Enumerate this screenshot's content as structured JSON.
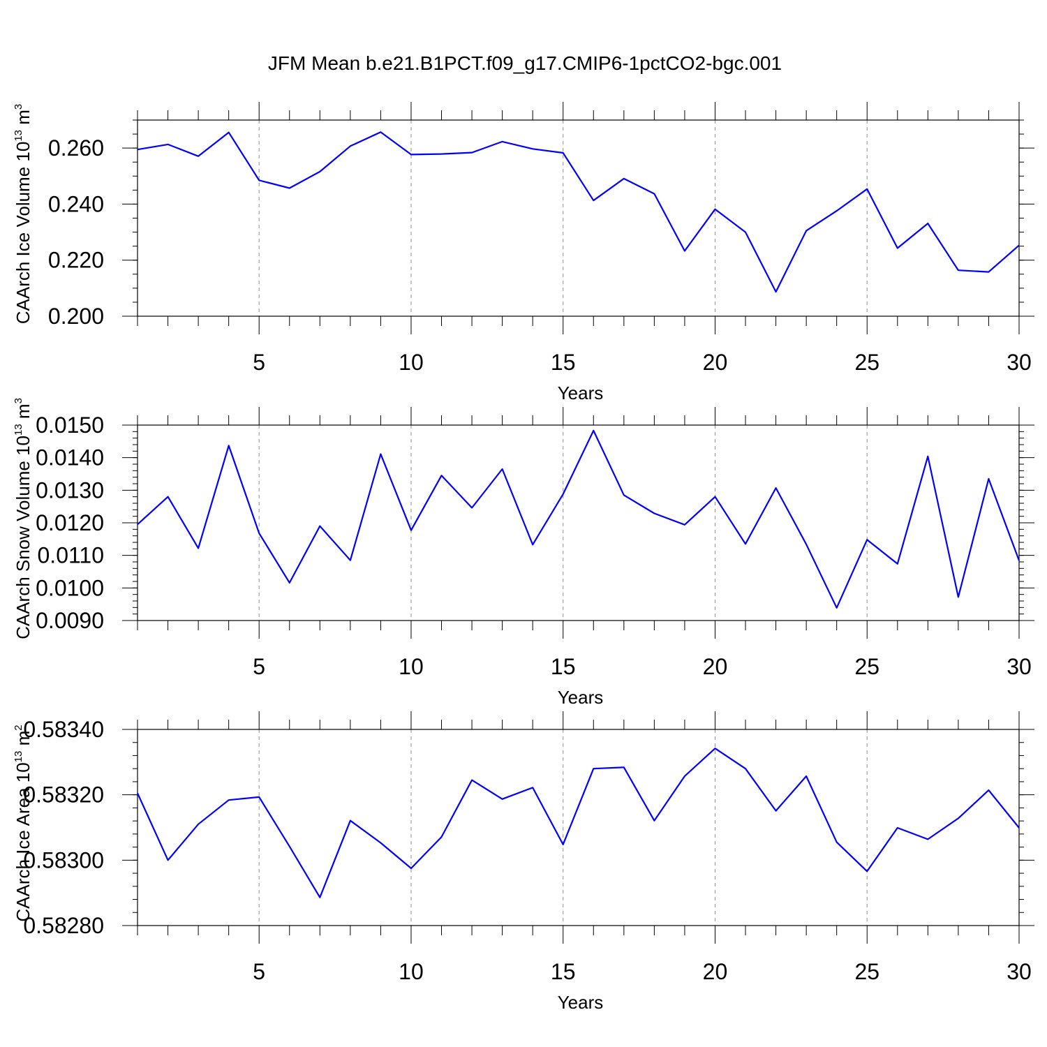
{
  "title": "JFM Mean b.e21.B1PCT.f09_g17.CMIP6-1pctCO2-bgc.001",
  "colors": {
    "line": "#0000ff",
    "frame": "#000000",
    "grid": "#8c8c8c",
    "background": "#ffffff"
  },
  "chart_data": [
    {
      "type": "line",
      "xlabel": "Years",
      "ylabel": {
        "text": "CAArch Ice Volume 10",
        "exponent": "13",
        "unit": " m",
        "unit_exponent": "3"
      },
      "xlim": [
        1,
        30
      ],
      "ylim": [
        0.2,
        0.27
      ],
      "xticks": [
        "5",
        "10",
        "15",
        "20",
        "25",
        "30"
      ],
      "yticks": [
        {
          "value": 0.2,
          "label": "0.200"
        },
        {
          "value": 0.22,
          "label": "0.220"
        },
        {
          "value": 0.24,
          "label": "0.240"
        },
        {
          "value": 0.26,
          "label": "0.260"
        }
      ],
      "yminor_step": 0.005,
      "grid": "vertical dashed at major x ticks",
      "series": [
        {
          "x": [
            1,
            2,
            3,
            4,
            5,
            6,
            7,
            8,
            9,
            10,
            11,
            12,
            13,
            14,
            15,
            16,
            17,
            18,
            19,
            20,
            21,
            22,
            23,
            24,
            25,
            26,
            27,
            28,
            29,
            30
          ],
          "values": [
            0.2595,
            0.2613,
            0.2571,
            0.2656,
            0.2485,
            0.2457,
            0.2516,
            0.2607,
            0.2657,
            0.2577,
            0.2579,
            0.2584,
            0.2623,
            0.2597,
            0.2583,
            0.2413,
            0.2491,
            0.2437,
            0.2233,
            0.2382,
            0.23,
            0.2087,
            0.2305,
            0.2376,
            0.2454,
            0.2243,
            0.2331,
            0.2164,
            0.2158,
            0.2253
          ]
        }
      ]
    },
    {
      "type": "line",
      "xlabel": "Years",
      "ylabel": {
        "text": "CAArch Snow Volume 10",
        "exponent": "13",
        "unit": " m",
        "unit_exponent": "3"
      },
      "xlim": [
        1,
        30
      ],
      "ylim": [
        0.009,
        0.015
      ],
      "xticks": [
        "5",
        "10",
        "15",
        "20",
        "25",
        "30"
      ],
      "yticks": [
        {
          "value": 0.009,
          "label": "0.0090"
        },
        {
          "value": 0.01,
          "label": "0.0100"
        },
        {
          "value": 0.011,
          "label": "0.0110"
        },
        {
          "value": 0.012,
          "label": "0.0120"
        },
        {
          "value": 0.013,
          "label": "0.0130"
        },
        {
          "value": 0.014,
          "label": "0.0140"
        },
        {
          "value": 0.015,
          "label": "0.0150"
        }
      ],
      "yminor_step": 0.0002,
      "grid": "vertical dashed at major x ticks",
      "series": [
        {
          "x": [
            1,
            2,
            3,
            4,
            5,
            6,
            7,
            8,
            9,
            10,
            11,
            12,
            13,
            14,
            15,
            16,
            17,
            18,
            19,
            20,
            21,
            22,
            23,
            24,
            25,
            26,
            27,
            28,
            29,
            30
          ],
          "values": [
            0.01195,
            0.0128,
            0.01122,
            0.01437,
            0.01168,
            0.01016,
            0.0119,
            0.01085,
            0.01411,
            0.01177,
            0.01345,
            0.01246,
            0.01365,
            0.01133,
            0.01288,
            0.01483,
            0.01285,
            0.01229,
            0.01194,
            0.0128,
            0.01135,
            0.01307,
            0.01134,
            0.00939,
            0.01148,
            0.01074,
            0.01404,
            0.00972,
            0.01335,
            0.01084
          ]
        }
      ]
    },
    {
      "type": "line",
      "xlabel": "Years",
      "ylabel": {
        "text": "CAArch Ice Area 10",
        "exponent": "13",
        "unit": " m",
        "unit_exponent": "2"
      },
      "xlim": [
        1,
        30
      ],
      "ylim": [
        0.5828,
        0.5834
      ],
      "xticks": [
        "5",
        "10",
        "15",
        "20",
        "25",
        "30"
      ],
      "yticks": [
        {
          "value": 0.5828,
          "label": "0.58280"
        },
        {
          "value": 0.583,
          "label": "0.58300"
        },
        {
          "value": 0.5832,
          "label": "0.58320"
        },
        {
          "value": 0.5834,
          "label": "0.58340"
        }
      ],
      "yminor_step": 4e-05,
      "grid": "vertical dashed at major x ticks",
      "series": [
        {
          "x": [
            1,
            2,
            3,
            4,
            5,
            6,
            7,
            8,
            9,
            10,
            11,
            12,
            13,
            14,
            15,
            16,
            17,
            18,
            19,
            20,
            21,
            22,
            23,
            24,
            25,
            26,
            27,
            28,
            29,
            30
          ],
          "values": [
            0.583205,
            0.583,
            0.58311,
            0.583184,
            0.583193,
            0.583042,
            0.582886,
            0.583121,
            0.583053,
            0.582975,
            0.583071,
            0.583245,
            0.583187,
            0.583222,
            0.583048,
            0.58328,
            0.583284,
            0.583121,
            0.583257,
            0.583342,
            0.58328,
            0.583151,
            0.583257,
            0.583055,
            0.582966,
            0.583099,
            0.583064,
            0.583128,
            0.583214,
            0.583099
          ]
        }
      ]
    }
  ]
}
